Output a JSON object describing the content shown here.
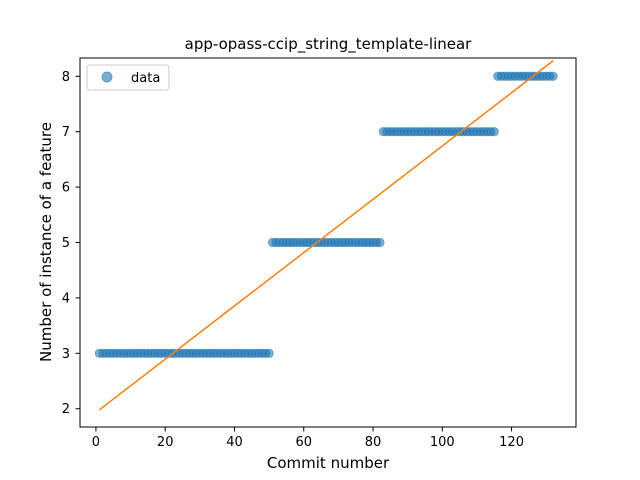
{
  "chart_data": {
    "type": "scatter",
    "title": "app-opass-ccip_string_template-linear",
    "xlabel": "Commit number",
    "ylabel": "Number of instance of a feature",
    "xlim": [
      -4.6,
      138.6
    ],
    "ylim": [
      1.67,
      8.33
    ],
    "xticks": [
      0,
      20,
      40,
      60,
      80,
      100,
      120
    ],
    "yticks": [
      2,
      3,
      4,
      5,
      6,
      7,
      8
    ],
    "grid": false,
    "legend_position": "top-left",
    "series": [
      {
        "name": "data",
        "kind": "scatter",
        "color": "#1f77b4",
        "segments": [
          {
            "x_start": 1,
            "x_end": 50,
            "y": 3
          },
          {
            "x_start": 51,
            "x_end": 82,
            "y": 5
          },
          {
            "x_start": 83,
            "x_end": 115,
            "y": 7
          },
          {
            "x_start": 116,
            "x_end": 132,
            "y": 8
          }
        ]
      },
      {
        "kind": "line",
        "color": "#ff7f0e",
        "x": [
          1,
          132
        ],
        "y": [
          1.98,
          8.28
        ]
      }
    ]
  }
}
